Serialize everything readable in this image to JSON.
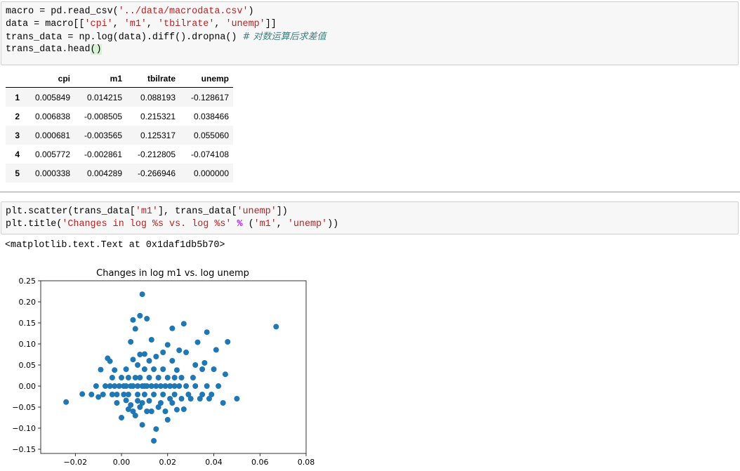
{
  "cell1": {
    "lines": [
      [
        {
          "t": "macro = pd.read_csv(",
          "c": ""
        },
        {
          "t": "'../data/macrodata.csv'",
          "c": "str"
        },
        {
          "t": ")",
          "c": ""
        }
      ],
      [
        {
          "t": "data = macro[[",
          "c": ""
        },
        {
          "t": "'cpi'",
          "c": "str"
        },
        {
          "t": ", ",
          "c": ""
        },
        {
          "t": "'m1'",
          "c": "str"
        },
        {
          "t": ", ",
          "c": ""
        },
        {
          "t": "'tbilrate'",
          "c": "str"
        },
        {
          "t": ", ",
          "c": ""
        },
        {
          "t": "'unemp'",
          "c": "str"
        },
        {
          "t": "]]",
          "c": ""
        }
      ],
      [
        {
          "t": "trans_data = np.log(data).diff().dropna() ",
          "c": ""
        },
        {
          "t": "# 对数运算后求差值",
          "c": "cm"
        }
      ],
      [
        {
          "t": "trans_data.head",
          "c": ""
        },
        {
          "t": "()",
          "c": "hl"
        }
      ]
    ]
  },
  "table": {
    "columns": [
      "cpi",
      "m1",
      "tbilrate",
      "unemp"
    ],
    "rows": [
      {
        "index": "1",
        "values": [
          "0.005849",
          "0.014215",
          "0.088193",
          "-0.128617"
        ]
      },
      {
        "index": "2",
        "values": [
          "0.006838",
          "-0.008505",
          "0.215321",
          "0.038466"
        ]
      },
      {
        "index": "3",
        "values": [
          "0.000681",
          "-0.003565",
          "0.125317",
          "0.055060"
        ]
      },
      {
        "index": "4",
        "values": [
          "0.005772",
          "-0.002861",
          "-0.212805",
          "-0.074108"
        ]
      },
      {
        "index": "5",
        "values": [
          "0.000338",
          "0.004289",
          "-0.266946",
          "0.000000"
        ]
      }
    ]
  },
  "cell2": {
    "lines": [
      [
        {
          "t": "plt.scatter(trans_data[",
          "c": ""
        },
        {
          "t": "'m1'",
          "c": "str"
        },
        {
          "t": "], trans_data[",
          "c": ""
        },
        {
          "t": "'unemp'",
          "c": "str"
        },
        {
          "t": "])",
          "c": ""
        }
      ],
      [
        {
          "t": "plt.title(",
          "c": ""
        },
        {
          "t": "'Changes in log %s vs. log %s'",
          "c": "str"
        },
        {
          "t": " ",
          "c": ""
        },
        {
          "t": "%",
          "c": "op"
        },
        {
          "t": " (",
          "c": ""
        },
        {
          "t": "'m1'",
          "c": "str"
        },
        {
          "t": ", ",
          "c": ""
        },
        {
          "t": "'unemp'",
          "c": "str"
        },
        {
          "t": "))",
          "c": ""
        }
      ]
    ]
  },
  "output_text": "<matplotlib.text.Text at 0x1daf1db5b70>",
  "chart_data": {
    "type": "scatter",
    "title": "Changes in log m1 vs. log unemp",
    "xlim": [
      -0.035,
      0.08
    ],
    "ylim": [
      -0.16,
      0.25
    ],
    "xticks": [
      -0.02,
      0.0,
      0.02,
      0.04,
      0.06,
      0.08
    ],
    "xtick_labels": [
      "−0.02",
      "0.00",
      "0.02",
      "0.04",
      "0.06",
      "0.08"
    ],
    "yticks": [
      -0.15,
      -0.1,
      -0.05,
      0.0,
      0.05,
      0.1,
      0.15,
      0.2,
      0.25
    ],
    "ytick_labels": [
      "−0.15",
      "−0.10",
      "−0.05",
      "0.00",
      "0.05",
      "0.10",
      "0.15",
      "0.20",
      "0.25"
    ],
    "marker_color": "#1f77b4",
    "points": [
      [
        -0.024,
        -0.038
      ],
      [
        -0.017,
        -0.019
      ],
      [
        -0.013,
        -0.02
      ],
      [
        -0.011,
        0.0
      ],
      [
        -0.01,
        -0.026
      ],
      [
        -0.009,
        0.039
      ],
      [
        -0.008,
        -0.02
      ],
      [
        -0.007,
        0.0
      ],
      [
        -0.006,
        0.066
      ],
      [
        -0.005,
        0.059
      ],
      [
        -0.005,
        0.0
      ],
      [
        -0.004,
        0.02
      ],
      [
        -0.004,
        -0.02
      ],
      [
        -0.003,
        0.038
      ],
      [
        -0.003,
        0.0
      ],
      [
        -0.002,
        -0.02
      ],
      [
        -0.002,
        -0.04
      ],
      [
        -0.001,
        0.0
      ],
      [
        0.0,
        0.02
      ],
      [
        0.0,
        -0.075
      ],
      [
        0.001,
        -0.02
      ],
      [
        0.001,
        0.0
      ],
      [
        0.002,
        -0.034
      ],
      [
        0.002,
        0.0
      ],
      [
        0.002,
        0.04
      ],
      [
        0.003,
        -0.055
      ],
      [
        0.003,
        0.02
      ],
      [
        0.003,
        -0.02
      ],
      [
        0.004,
        0.0
      ],
      [
        0.004,
        0.105
      ],
      [
        0.004,
        -0.045
      ],
      [
        0.005,
        0.063
      ],
      [
        0.005,
        0.157
      ],
      [
        0.005,
        0.0
      ],
      [
        0.005,
        -0.06
      ],
      [
        0.006,
        -0.07
      ],
      [
        0.006,
        0.02
      ],
      [
        0.006,
        0.136
      ],
      [
        0.007,
        -0.035
      ],
      [
        0.007,
        0.05
      ],
      [
        0.007,
        0.0
      ],
      [
        0.007,
        -0.02
      ],
      [
        0.008,
        0.167
      ],
      [
        0.008,
        0.075
      ],
      [
        0.008,
        -0.05
      ],
      [
        0.008,
        0.02
      ],
      [
        0.009,
        0.0
      ],
      [
        0.009,
        -0.092
      ],
      [
        0.009,
        -0.04
      ],
      [
        0.009,
        0.218
      ],
      [
        0.01,
        0.0
      ],
      [
        0.01,
        0.076
      ],
      [
        0.01,
        0.04
      ],
      [
        0.01,
        -0.02
      ],
      [
        0.011,
        -0.06
      ],
      [
        0.011,
        0.0
      ],
      [
        0.011,
        0.16
      ],
      [
        0.012,
        0.02
      ],
      [
        0.012,
        -0.035
      ],
      [
        0.012,
        0.06
      ],
      [
        0.013,
        0.0
      ],
      [
        0.013,
        -0.06
      ],
      [
        0.013,
        0.11
      ],
      [
        0.014,
        -0.02
      ],
      [
        0.014,
        0.04
      ],
      [
        0.014,
        -0.13
      ],
      [
        0.015,
        0.0
      ],
      [
        0.015,
        -0.102
      ],
      [
        0.015,
        0.07
      ],
      [
        0.016,
        -0.05
      ],
      [
        0.016,
        0.02
      ],
      [
        0.017,
        0.0
      ],
      [
        0.017,
        -0.04
      ],
      [
        0.018,
        0.08
      ],
      [
        0.018,
        -0.02
      ],
      [
        0.018,
        0.04
      ],
      [
        0.019,
        0.0
      ],
      [
        0.019,
        -0.06
      ],
      [
        0.02,
        0.02
      ],
      [
        0.02,
        0.098
      ],
      [
        0.02,
        -0.08
      ],
      [
        0.021,
        0.0
      ],
      [
        0.021,
        -0.03
      ],
      [
        0.022,
        0.06
      ],
      [
        0.022,
        -0.04
      ],
      [
        0.022,
        0.137
      ],
      [
        0.023,
        0.0
      ],
      [
        0.023,
        0.02
      ],
      [
        0.023,
        -0.02
      ],
      [
        0.024,
        -0.056
      ],
      [
        0.024,
        0.038
      ],
      [
        0.025,
        0.0
      ],
      [
        0.025,
        0.085
      ],
      [
        0.026,
        -0.03
      ],
      [
        0.026,
        0.02
      ],
      [
        0.027,
        0.148
      ],
      [
        0.027,
        -0.055
      ],
      [
        0.028,
        0.0
      ],
      [
        0.028,
        0.08
      ],
      [
        0.029,
        -0.02
      ],
      [
        0.03,
        -0.03
      ],
      [
        0.031,
        0.02
      ],
      [
        0.032,
        0.0
      ],
      [
        0.032,
        0.05
      ],
      [
        0.033,
        0.104
      ],
      [
        0.034,
        -0.03
      ],
      [
        0.035,
        -0.02
      ],
      [
        0.035,
        0.04
      ],
      [
        0.036,
        0.055
      ],
      [
        0.037,
        0.0
      ],
      [
        0.037,
        0.128
      ],
      [
        0.038,
        -0.03
      ],
      [
        0.039,
        -0.02
      ],
      [
        0.04,
        0.04
      ],
      [
        0.041,
        0.086
      ],
      [
        0.042,
        0.0
      ],
      [
        0.044,
        -0.04
      ],
      [
        0.045,
        0.028
      ],
      [
        0.046,
        0.105
      ],
      [
        0.05,
        -0.03
      ],
      [
        0.067,
        0.141
      ]
    ]
  }
}
